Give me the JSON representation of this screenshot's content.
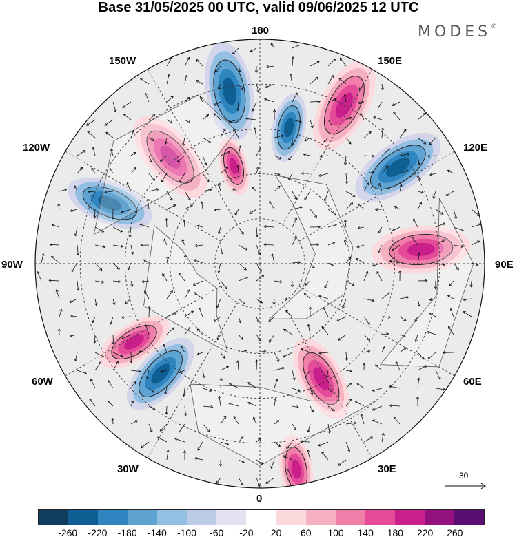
{
  "title": "Base 31/05/2025 00 UTC, valid 09/06/2025 12 UTC",
  "brand": "MODES",
  "brand_mark": "©",
  "longitudes": {
    "top": "180",
    "bottom": "0",
    "left": "90W",
    "right": "90E",
    "upper_left_outer": "120W",
    "upper_left_inner": "150W",
    "upper_right_inner": "150E",
    "upper_right_outer": "120E",
    "lower_left_outer": "60W",
    "lower_left_inner": "30W",
    "lower_right_inner": "30E",
    "lower_right_outer": "60E"
  },
  "vector_scale": {
    "label": "30"
  },
  "colorbar": {
    "colors": [
      "#0e3d5e",
      "#0f5f94",
      "#2f85c0",
      "#5fa3d2",
      "#93bfe2",
      "#bccbe6",
      "#e4e1f1",
      "#ffffff",
      "#fbd9dc",
      "#f5b0c2",
      "#ef7fa9",
      "#e44b99",
      "#c81f8a",
      "#93127e",
      "#5a0e71"
    ],
    "ticks": [
      "-260",
      "-220",
      "-180",
      "-140",
      "-100",
      "-60",
      "-20",
      "20",
      "60",
      "100",
      "140",
      "180",
      "220",
      "260"
    ]
  },
  "anomalies": [
    {
      "sign": "neg",
      "lon": -170,
      "dist": 0.78,
      "size": 1.0
    },
    {
      "sign": "pos",
      "lon": -140,
      "dist": 0.62,
      "size": 1.0
    },
    {
      "sign": "neg",
      "lon": -112,
      "dist": 0.72,
      "size": 0.9
    },
    {
      "sign": "pos",
      "lon": -165,
      "dist": 0.45,
      "size": 0.6
    },
    {
      "sign": "neg",
      "lon": -42,
      "dist": 0.66,
      "size": 0.9
    },
    {
      "sign": "pos",
      "lon": -58,
      "dist": 0.66,
      "size": 0.8
    },
    {
      "sign": "pos",
      "lon": 28,
      "dist": 0.58,
      "size": 0.9
    },
    {
      "sign": "pos",
      "lon": 95,
      "dist": 0.72,
      "size": 1.0
    },
    {
      "sign": "neg",
      "lon": 125,
      "dist": 0.75,
      "size": 1.0
    },
    {
      "sign": "pos",
      "lon": 152,
      "dist": 0.8,
      "size": 1.0
    },
    {
      "sign": "neg",
      "lon": 168,
      "dist": 0.62,
      "size": 0.7
    },
    {
      "sign": "pos",
      "lon": 10,
      "dist": 0.93,
      "size": 0.7
    }
  ]
}
